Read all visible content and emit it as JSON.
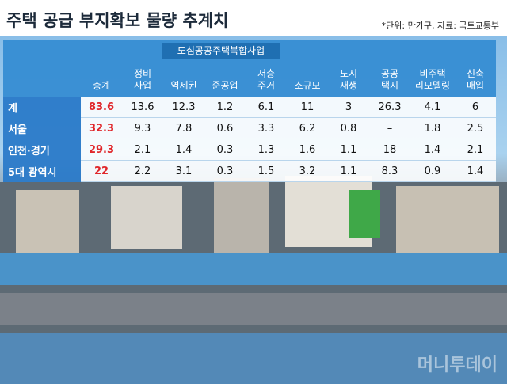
{
  "header": {
    "title": "주택 공급 부지확보 물량 추계치",
    "note": "*단위: 만가구, 자료: 국토교통부"
  },
  "table": {
    "group_header": "도심공공주택복합사업",
    "columns": [
      "총계",
      "정비\n사업",
      "역세권",
      "준공업",
      "저층\n주거",
      "소규모",
      "도시\n재생",
      "공공\n택지",
      "비주택\n리모델링",
      "신축\n매입"
    ],
    "rows": [
      {
        "label": "계",
        "cells": [
          "83.6",
          "13.6",
          "12.3",
          "1.2",
          "6.1",
          "11",
          "3",
          "26.3",
          "4.1",
          "6"
        ]
      },
      {
        "label": "서울",
        "cells": [
          "32.3",
          "9.3",
          "7.8",
          "0.6",
          "3.3",
          "6.2",
          "0.8",
          "–",
          "1.8",
          "2.5"
        ]
      },
      {
        "label": "인천·경기",
        "cells": [
          "29.3",
          "2.1",
          "1.4",
          "0.3",
          "1.3",
          "1.6",
          "1.1",
          "18",
          "1.4",
          "2.1"
        ]
      },
      {
        "label": "5대 광역시",
        "cells": [
          "22",
          "2.2",
          "3.1",
          "0.3",
          "1.5",
          "3.2",
          "1.1",
          "8.3",
          "0.9",
          "1.4"
        ]
      }
    ]
  },
  "watermark": "머니투데이"
}
